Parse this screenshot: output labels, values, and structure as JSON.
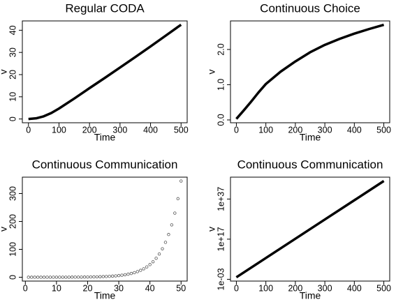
{
  "chart_data": [
    {
      "type": "line",
      "title": "Regular CODA",
      "x_label": "Time",
      "y_label": "v",
      "x": [
        0,
        25,
        50,
        75,
        100,
        150,
        200,
        250,
        300,
        350,
        400,
        450,
        500
      ],
      "values": [
        0,
        0.3,
        1.2,
        2.7,
        4.7,
        9.2,
        13.9,
        18.5,
        23.2,
        27.9,
        32.7,
        37.6,
        42.5
      ],
      "color": "#000000",
      "xlim": [
        -20,
        520
      ],
      "ylim": [
        -1.7,
        44.2
      ],
      "xticks": [
        0,
        100,
        200,
        300,
        400,
        500
      ],
      "yticks": [
        0,
        10,
        20,
        30,
        40
      ]
    },
    {
      "type": "line",
      "title": "Continuous Choice",
      "x_label": "Time",
      "y_label": "v",
      "x": [
        0,
        25,
        50,
        75,
        100,
        150,
        200,
        250,
        300,
        350,
        400,
        450,
        500
      ],
      "values": [
        0.03,
        0.27,
        0.52,
        0.78,
        1.02,
        1.37,
        1.66,
        1.92,
        2.13,
        2.3,
        2.45,
        2.58,
        2.7
      ],
      "color": "#000000",
      "xlim": [
        -20,
        520
      ],
      "ylim": [
        -0.08,
        2.81
      ],
      "xticks": [
        0,
        100,
        200,
        300,
        400,
        500
      ],
      "yticks": [
        {
          "value": 0,
          "label": "0.0"
        },
        {
          "value": 1,
          "label": "1.0"
        },
        {
          "value": 2,
          "label": "2.0"
        }
      ]
    },
    {
      "type": "scatter",
      "title": "Continuous Communication",
      "x_label": "Time",
      "y_label": "v",
      "x": [
        1,
        2,
        3,
        4,
        5,
        6,
        7,
        8,
        9,
        10,
        11,
        12,
        13,
        14,
        15,
        16,
        17,
        18,
        19,
        20,
        21,
        22,
        23,
        24,
        25,
        26,
        27,
        28,
        29,
        30,
        31,
        32,
        33,
        34,
        35,
        36,
        37,
        38,
        39,
        40,
        41,
        42,
        43,
        44,
        45,
        46,
        47,
        48,
        49,
        50
      ],
      "values": [
        0,
        0,
        0,
        0,
        0,
        0,
        0.1,
        0.1,
        0.1,
        0.1,
        0.1,
        0.2,
        0.2,
        0.2,
        0.3,
        0.4,
        0.4,
        0.5,
        0.6,
        0.8,
        1,
        1.2,
        1.4,
        1.8,
        2.2,
        2.6,
        3.2,
        4,
        4.9,
        5.9,
        7.3,
        8.9,
        10.9,
        13.4,
        16.4,
        20.1,
        24.7,
        30.2,
        37,
        45.3,
        55.5,
        68,
        83.3,
        102.1,
        125.1,
        153.2,
        187.7,
        229.9,
        281.6,
        345
      ],
      "color": "#555555",
      "xlim": [
        -0.96,
        51.96
      ],
      "ylim": [
        -13.8,
        358.8
      ],
      "xticks": [
        0,
        10,
        20,
        30,
        40,
        50
      ],
      "yticks": [
        0,
        100,
        200,
        300
      ]
    },
    {
      "type": "line",
      "title": "Continuous Communication",
      "x_label": "Time",
      "y_label": "v",
      "x": [
        0,
        100,
        200,
        300,
        400,
        500
      ],
      "values": [
        0.01,
        40000000.0,
        1.6e+17,
        6.3e+26,
        2.5e+36,
        1e+46
      ],
      "color": "#000000",
      "log_y": true,
      "xlim": [
        -20,
        520
      ],
      "ylim": [
        0.00013,
        8e+47
      ],
      "xticks": [
        0,
        100,
        200,
        300,
        400,
        500
      ],
      "yticks": [
        {
          "value": 0.001,
          "label": "1e-03"
        },
        {
          "value": 1e+17,
          "label": "1e+17"
        },
        {
          "value": 1e+37,
          "label": "1e+37"
        }
      ]
    }
  ]
}
